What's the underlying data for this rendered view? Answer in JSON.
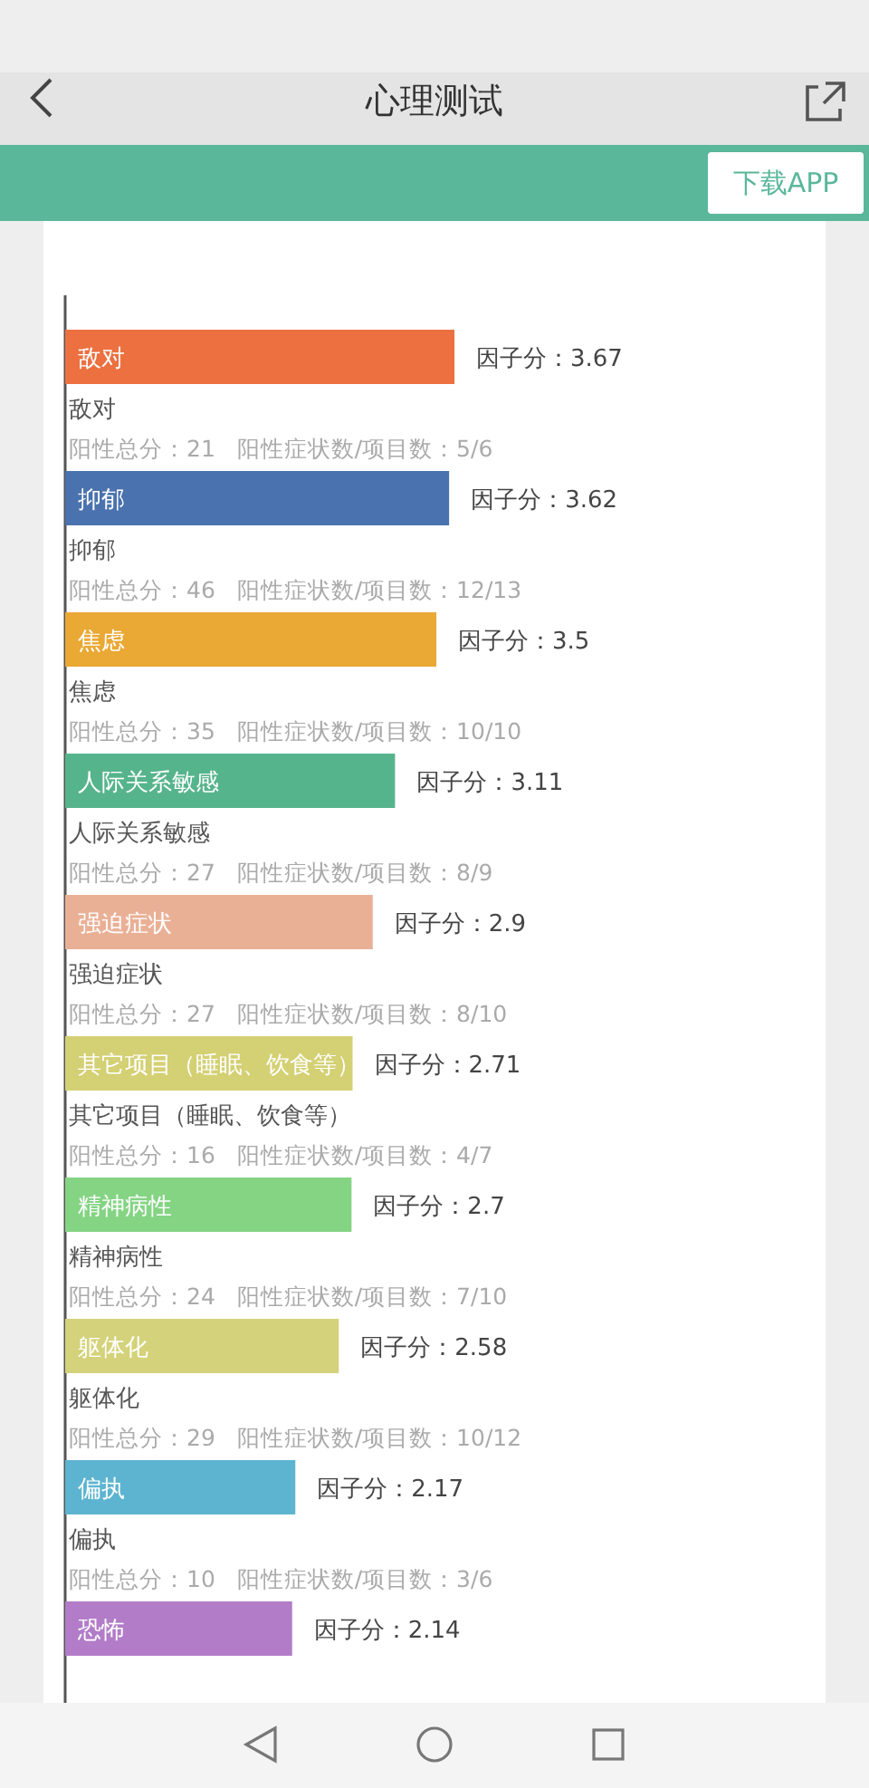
{
  "chart_data": {
    "type": "bar",
    "orientation": "horizontal",
    "title": "心理测试",
    "categories": [
      "敌对",
      "抑郁",
      "焦虑",
      "人际关系敏感",
      "强迫症状",
      "其它项目（睡眠、饮食等）",
      "精神病性",
      "躯体化",
      "偏执",
      "恐怖"
    ],
    "values": [
      3.67,
      3.62,
      3.5,
      3.11,
      2.9,
      2.71,
      2.7,
      2.58,
      2.17,
      2.14
    ],
    "colors": [
      "#ec7040",
      "#4a72ae",
      "#eaa834",
      "#56b48c",
      "#eab096",
      "#d4d074",
      "#84d484",
      "#d4d27a",
      "#5cb4d0",
      "#b27cc8"
    ],
    "value_labels": [
      "因子分：3.67",
      "因子分：3.62",
      "因子分：3.5",
      "因子分：3.11",
      "因子分：2.9",
      "因子分：2.71",
      "因子分：2.7",
      "因子分：2.58",
      "因子分：2.17",
      "因子分：2.14"
    ],
    "annotations": [
      "下载APP",
      "阳性总分：21   阳性症状数/项目数：5/6",
      "阳性总分：46   阳性症状数/项目数：12/13",
      "阳性总分：35   阳性症状数/项目数：10/10",
      "阳性总分：27   阳性症状数/项目数：8/9",
      "阳性总分：27   阳性症状数/项目数：8/10",
      "阳性总分：16   阳性症状数/项目数：4/7",
      "阳性总分：24   阳性症状数/项目数：7/10",
      "阳性总分：29   阳性症状数/项目数：10/12",
      "阳性总分：10   阳性症状数/项目数：3/6"
    ]
  }
}
